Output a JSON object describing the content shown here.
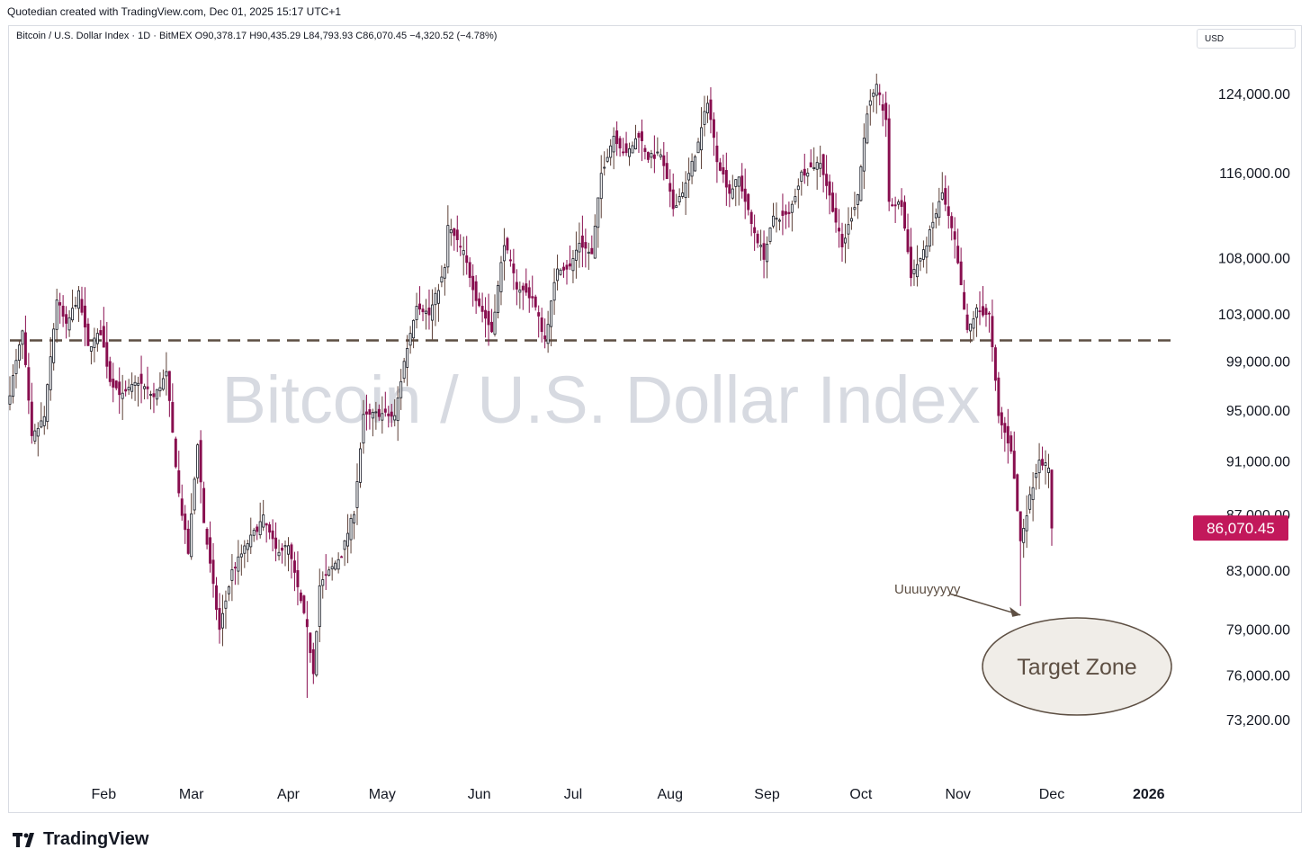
{
  "header": {
    "credit": "Quotedian created with TradingView.com, Dec 01, 2025 15:17 UTC+1",
    "legend": "Bitcoin / U.S. Dollar Index · 1D · BitMEX  O90,378.17  H90,435.29  L84,793.93  C86,070.45  −4,320.52 (−4.78%)"
  },
  "currency_selector": "USD",
  "brand": {
    "name": "TradingView"
  },
  "colors": {
    "up": "#ffffff",
    "down": "#880e4f",
    "wick": "#5d4037",
    "last_price": "#c2185b",
    "dashed_line": "#5d4f43"
  },
  "chart_data": {
    "type": "candlestick",
    "title": "Bitcoin / U.S. Dollar Index",
    "y_scale": "log",
    "ylim": [
      70000,
      128500
    ],
    "y_ticks": [
      {
        "value": 124000,
        "label": "124,000.00"
      },
      {
        "value": 116000,
        "label": "116,000.00"
      },
      {
        "value": 108000,
        "label": "108,000.00"
      },
      {
        "value": 103000,
        "label": "103,000.00"
      },
      {
        "value": 99000,
        "label": "99,000.00"
      },
      {
        "value": 95000,
        "label": "95,000.00"
      },
      {
        "value": 91000,
        "label": "91,000.00"
      },
      {
        "value": 87000,
        "label": "87,000.00"
      },
      {
        "value": 83000,
        "label": "83,000.00"
      },
      {
        "value": 79000,
        "label": "79,000.00"
      },
      {
        "value": 76000,
        "label": "76,000.00"
      },
      {
        "value": 73200,
        "label": "73,200.00"
      }
    ],
    "x_ticks": [
      {
        "date": "2025-02-01",
        "label": "Feb"
      },
      {
        "date": "2025-03-01",
        "label": "Mar"
      },
      {
        "date": "2025-04-01",
        "label": "Apr"
      },
      {
        "date": "2025-05-01",
        "label": "May"
      },
      {
        "date": "2025-06-01",
        "label": "Jun"
      },
      {
        "date": "2025-07-01",
        "label": "Jul"
      },
      {
        "date": "2025-08-01",
        "label": "Aug"
      },
      {
        "date": "2025-09-01",
        "label": "Sep"
      },
      {
        "date": "2025-10-01",
        "label": "Oct"
      },
      {
        "date": "2025-11-01",
        "label": "Nov"
      },
      {
        "date": "2025-12-01",
        "label": "Dec"
      },
      {
        "date": "2026-01-01",
        "label": "2026"
      }
    ],
    "xlim": [
      "2025-01-02",
      "2026-01-14"
    ],
    "last_price": {
      "value": 86070.45,
      "label": "86,070.45"
    },
    "reference_line": {
      "value": 100800,
      "style": "dashed"
    },
    "annotations": {
      "arrow_text": "Uuuuyyyyy",
      "arrow_target": {
        "date": "2025-11-21",
        "value": 80600
      },
      "target_zone_label": "Target Zone"
    },
    "price_path": [
      {
        "date": "2025-01-02",
        "value": 96500
      },
      {
        "date": "2025-01-06",
        "value": 101500
      },
      {
        "date": "2025-01-09",
        "value": 92800
      },
      {
        "date": "2025-01-13",
        "value": 94500
      },
      {
        "date": "2025-01-17",
        "value": 104400
      },
      {
        "date": "2025-01-20",
        "value": 102000
      },
      {
        "date": "2025-01-24",
        "value": 104800
      },
      {
        "date": "2025-01-27",
        "value": 100200
      },
      {
        "date": "2025-01-31",
        "value": 101500
      },
      {
        "date": "2025-02-03",
        "value": 97500
      },
      {
        "date": "2025-02-07",
        "value": 96200
      },
      {
        "date": "2025-02-12",
        "value": 97400
      },
      {
        "date": "2025-02-17",
        "value": 96100
      },
      {
        "date": "2025-02-21",
        "value": 98000
      },
      {
        "date": "2025-02-25",
        "value": 88600
      },
      {
        "date": "2025-02-28",
        "value": 84300
      },
      {
        "date": "2025-03-03",
        "value": 92500
      },
      {
        "date": "2025-03-05",
        "value": 86500
      },
      {
        "date": "2025-03-10",
        "value": 79000
      },
      {
        "date": "2025-03-14",
        "value": 83000
      },
      {
        "date": "2025-03-19",
        "value": 85000
      },
      {
        "date": "2025-03-24",
        "value": 86800
      },
      {
        "date": "2025-03-28",
        "value": 84500
      },
      {
        "date": "2025-04-01",
        "value": 84700
      },
      {
        "date": "2025-04-07",
        "value": 79000
      },
      {
        "date": "2025-04-09",
        "value": 76300
      },
      {
        "date": "2025-04-11",
        "value": 82000
      },
      {
        "date": "2025-04-18",
        "value": 84200
      },
      {
        "date": "2025-04-22",
        "value": 87300
      },
      {
        "date": "2025-04-25",
        "value": 94500
      },
      {
        "date": "2025-04-30",
        "value": 94800
      },
      {
        "date": "2025-05-05",
        "value": 94500
      },
      {
        "date": "2025-05-08",
        "value": 99000
      },
      {
        "date": "2025-05-12",
        "value": 104000
      },
      {
        "date": "2025-05-16",
        "value": 103000
      },
      {
        "date": "2025-05-21",
        "value": 107000
      },
      {
        "date": "2025-05-22",
        "value": 111000
      },
      {
        "date": "2025-05-27",
        "value": 108500
      },
      {
        "date": "2025-05-31",
        "value": 104500
      },
      {
        "date": "2025-06-05",
        "value": 101600
      },
      {
        "date": "2025-06-09",
        "value": 109500
      },
      {
        "date": "2025-06-13",
        "value": 105500
      },
      {
        "date": "2025-06-18",
        "value": 104500
      },
      {
        "date": "2025-06-22",
        "value": 100900
      },
      {
        "date": "2025-06-26",
        "value": 107200
      },
      {
        "date": "2025-06-30",
        "value": 107200
      },
      {
        "date": "2025-07-03",
        "value": 109500
      },
      {
        "date": "2025-07-07",
        "value": 108300
      },
      {
        "date": "2025-07-10",
        "value": 116000
      },
      {
        "date": "2025-07-14",
        "value": 119800
      },
      {
        "date": "2025-07-18",
        "value": 117800
      },
      {
        "date": "2025-07-22",
        "value": 119900
      },
      {
        "date": "2025-07-25",
        "value": 117600
      },
      {
        "date": "2025-07-29",
        "value": 117900
      },
      {
        "date": "2025-08-02",
        "value": 112700
      },
      {
        "date": "2025-08-06",
        "value": 114900
      },
      {
        "date": "2025-08-10",
        "value": 119000
      },
      {
        "date": "2025-08-13",
        "value": 123400
      },
      {
        "date": "2025-08-16",
        "value": 117500
      },
      {
        "date": "2025-08-20",
        "value": 114200
      },
      {
        "date": "2025-08-23",
        "value": 115600
      },
      {
        "date": "2025-08-27",
        "value": 111200
      },
      {
        "date": "2025-08-31",
        "value": 108200
      },
      {
        "date": "2025-09-03",
        "value": 111700
      },
      {
        "date": "2025-09-08",
        "value": 112000
      },
      {
        "date": "2025-09-12",
        "value": 116000
      },
      {
        "date": "2025-09-18",
        "value": 117200
      },
      {
        "date": "2025-09-22",
        "value": 112700
      },
      {
        "date": "2025-09-25",
        "value": 109000
      },
      {
        "date": "2025-09-30",
        "value": 114000
      },
      {
        "date": "2025-10-03",
        "value": 122300
      },
      {
        "date": "2025-10-06",
        "value": 124700
      },
      {
        "date": "2025-10-09",
        "value": 121500
      },
      {
        "date": "2025-10-10",
        "value": 113000
      },
      {
        "date": "2025-10-14",
        "value": 113000
      },
      {
        "date": "2025-10-17",
        "value": 106500
      },
      {
        "date": "2025-10-21",
        "value": 108500
      },
      {
        "date": "2025-10-27",
        "value": 114100
      },
      {
        "date": "2025-10-31",
        "value": 109500
      },
      {
        "date": "2025-11-04",
        "value": 101500
      },
      {
        "date": "2025-11-07",
        "value": 103400
      },
      {
        "date": "2025-11-11",
        "value": 103000
      },
      {
        "date": "2025-11-14",
        "value": 94500
      },
      {
        "date": "2025-11-18",
        "value": 92000
      },
      {
        "date": "2025-11-21",
        "value": 85100
      },
      {
        "date": "2025-11-24",
        "value": 88300
      },
      {
        "date": "2025-11-27",
        "value": 91300
      },
      {
        "date": "2025-11-30",
        "value": 90400
      },
      {
        "date": "2025-12-01",
        "value": 86070
      }
    ]
  }
}
